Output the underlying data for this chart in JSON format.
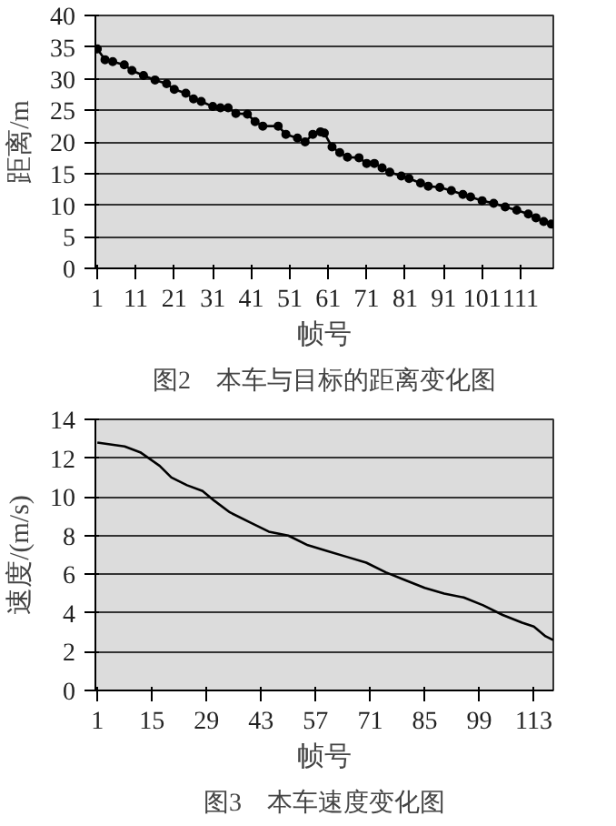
{
  "chart_data": [
    {
      "type": "line",
      "xlabel": "帧号",
      "ylabel": "距离/m",
      "annotations": [
        "图2　本车与目标的距离变化图"
      ],
      "marker": "circle",
      "grid": "y",
      "xlim": [
        0.5,
        119.5
      ],
      "xticks": [
        1,
        11,
        21,
        31,
        41,
        51,
        61,
        71,
        81,
        91,
        101,
        111
      ],
      "ylim": [
        0,
        40
      ],
      "yticks": [
        0,
        5,
        10,
        15,
        20,
        25,
        30,
        35,
        40
      ],
      "series": [
        {
          "color": "#000000",
          "x": [
            1,
            3,
            5,
            8,
            10,
            13,
            16,
            19,
            21,
            24,
            26,
            28,
            31,
            33,
            35,
            37,
            40,
            42,
            44,
            48,
            50,
            53,
            55,
            57,
            59,
            60,
            62,
            64,
            66,
            69,
            71,
            73,
            75,
            77,
            80,
            82,
            85,
            87,
            90,
            93,
            96,
            98,
            101,
            104,
            107,
            110,
            113,
            115,
            117,
            119
          ],
          "values": [
            34.7,
            33,
            32.7,
            32.2,
            31.3,
            30.5,
            29.8,
            29.2,
            28.3,
            27.7,
            26.8,
            26.4,
            25.6,
            25.4,
            25.4,
            24.5,
            24.4,
            23.2,
            22.5,
            22.5,
            21.2,
            20.6,
            20.0,
            21.2,
            21.6,
            21.4,
            19.2,
            18.3,
            17.6,
            17.5,
            16.6,
            16.6,
            15.9,
            15.2,
            14.6,
            14.2,
            13.5,
            13.0,
            12.8,
            12.3,
            11.7,
            11.3,
            10.7,
            10.3,
            9.7,
            9.2,
            8.6,
            8.0,
            7.4,
            7.0
          ]
        }
      ]
    },
    {
      "type": "line",
      "xlabel": "帧号",
      "ylabel": "速度/(m/s)",
      "annotations": [
        "图3　本车速度变化图"
      ],
      "grid": "y",
      "xlim": [
        0.5,
        118
      ],
      "xticks": [
        1,
        15,
        29,
        43,
        57,
        71,
        85,
        99,
        113
      ],
      "ylim": [
        0,
        14
      ],
      "yticks": [
        0,
        2,
        4,
        6,
        8,
        10,
        12,
        14
      ],
      "series": [
        {
          "color": "#000000",
          "x": [
            1,
            8,
            12,
            17,
            20,
            24,
            28,
            31,
            35,
            40,
            45,
            50,
            55,
            60,
            65,
            70,
            75,
            80,
            85,
            90,
            95,
            100,
            105,
            110,
            113,
            116,
            118
          ],
          "values": [
            12.8,
            12.6,
            12.3,
            11.6,
            11.0,
            10.6,
            10.3,
            9.8,
            9.2,
            8.7,
            8.2,
            8.0,
            7.5,
            7.2,
            6.9,
            6.6,
            6.1,
            5.7,
            5.3,
            5.0,
            4.8,
            4.4,
            3.9,
            3.5,
            3.3,
            2.8,
            2.6
          ]
        }
      ]
    }
  ]
}
